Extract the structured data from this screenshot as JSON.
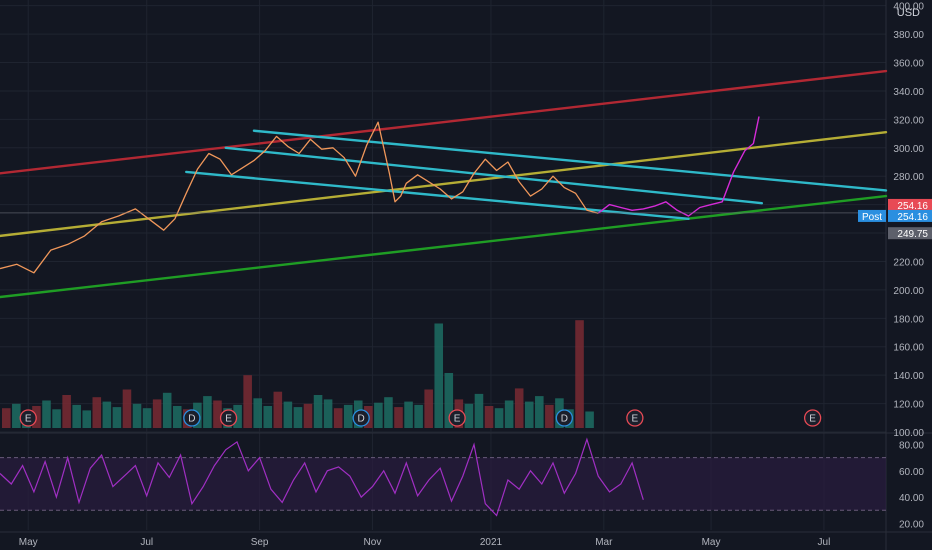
{
  "currency": "USD",
  "colors": {
    "background": "#131722",
    "grid": "#1f2430",
    "axis_text": "#b2b5be",
    "price": "#f0975a",
    "red_line": "#b22833",
    "yellow_line": "#b5ad35",
    "green_line": "#1f9d24",
    "channel": "#2fb9c9",
    "projection": "#d52bd8",
    "rsi": "#a02fc3",
    "rsi_band": "#2a1d3f",
    "volume_up": "#1d6d63",
    "volume_down": "#7a2a33",
    "label_red": "#e84a55",
    "label_blue": "#2a8fe0",
    "label_gray": "#5d606b"
  },
  "chart_data": [
    {
      "type": "line",
      "title": "",
      "x_ticks": [
        "May",
        "Jul",
        "Sep",
        "Nov",
        "2021",
        "Mar",
        "May",
        "Jul"
      ],
      "y_ticks": [
        100,
        120,
        140,
        160,
        180,
        200,
        220,
        240,
        260,
        280,
        300,
        320,
        340,
        360,
        380,
        400
      ],
      "y_tick_labels": [
        "100.00",
        "120.00",
        "140.00",
        "160.00",
        "180.00",
        "200.00",
        "220.00",
        "240.00",
        "260.00",
        "280.00",
        "300.00",
        "320.00",
        "340.00",
        "360.00",
        "380.00",
        "400.00"
      ],
      "ylim": [
        100,
        404
      ],
      "grid": true,
      "x_domain_months": [
        0,
        15.7
      ],
      "series": [
        {
          "role": "price",
          "x_month": [
            0,
            0.3,
            0.6,
            0.9,
            1.2,
            1.5,
            1.8,
            2.1,
            2.4,
            2.7,
            2.9,
            3.1,
            3.3,
            3.5,
            3.7,
            3.9,
            4.1,
            4.3,
            4.5,
            4.7,
            4.9,
            5.1,
            5.3,
            5.5,
            5.7,
            5.9,
            6.1,
            6.3,
            6.5,
            6.7,
            6.9,
            7.0,
            7.1,
            7.2,
            7.4,
            7.6,
            7.8,
            8.0,
            8.2,
            8.4,
            8.6,
            8.8,
            9.0,
            9.2,
            9.4,
            9.6,
            9.8,
            10.0,
            10.2,
            10.3,
            10.4,
            10.6
          ],
          "y": [
            215,
            218,
            212,
            228,
            232,
            238,
            248,
            252,
            257,
            248,
            242,
            250,
            268,
            285,
            296,
            292,
            281,
            286,
            291,
            298,
            308,
            301,
            296,
            306,
            299,
            300,
            293,
            280,
            302,
            318,
            282,
            262,
            266,
            275,
            281,
            276,
            271,
            264,
            269,
            282,
            292,
            284,
            290,
            276,
            266,
            271,
            280,
            272,
            268,
            262,
            256,
            254
          ]
        },
        {
          "role": "projection",
          "x_month": [
            10.6,
            10.8,
            11.0,
            11.2,
            11.4,
            11.6,
            11.8,
            12.0,
            12.2,
            12.4,
            12.6,
            12.8,
            13.0,
            13.2,
            13.35,
            13.45
          ],
          "y": [
            254,
            260,
            258,
            256,
            257,
            259,
            262,
            256,
            252,
            258,
            260,
            262,
            283,
            298,
            303,
            322
          ]
        }
      ],
      "trendlines": [
        {
          "role": "resistance-red",
          "x_month": [
            0,
            15.7
          ],
          "y": [
            282,
            354
          ]
        },
        {
          "role": "support-yellow",
          "x_month": [
            0,
            15.7
          ],
          "y": [
            238,
            311
          ]
        },
        {
          "role": "support-green",
          "x_month": [
            0,
            15.7
          ],
          "y": [
            195,
            266
          ]
        },
        {
          "role": "channel-upper",
          "x_month": [
            4.5,
            15.7
          ],
          "y": [
            312,
            270
          ]
        },
        {
          "role": "channel-middle",
          "x_month": [
            4.0,
            13.5
          ],
          "y": [
            300,
            261
          ]
        },
        {
          "role": "channel-lower",
          "x_month": [
            3.3,
            12.2
          ],
          "y": [
            283,
            250
          ]
        }
      ],
      "price_labels": [
        {
          "text": "254.16",
          "value": 254.16,
          "style": "red"
        },
        {
          "text": "254.16",
          "value": 254.16,
          "style": "blue",
          "prefix": "Post"
        },
        {
          "text": "249.75",
          "value": 249.75,
          "style": "gray"
        }
      ],
      "volume_relative": [
        0.18,
        0.22,
        0.15,
        0.2,
        0.25,
        0.17,
        0.3,
        0.21,
        0.16,
        0.28,
        0.24,
        0.19,
        0.35,
        0.22,
        0.18,
        0.26,
        0.32,
        0.2,
        0.17,
        0.23,
        0.29,
        0.25,
        0.18,
        0.21,
        0.48,
        0.27,
        0.2,
        0.33,
        0.24,
        0.19,
        0.22,
        0.3,
        0.26,
        0.18,
        0.21,
        0.25,
        0.2,
        0.23,
        0.28,
        0.19,
        0.24,
        0.21,
        0.35,
        0.95,
        0.5,
        0.26,
        0.22,
        0.31,
        0.2,
        0.18,
        0.25,
        0.36,
        0.24,
        0.29,
        0.21,
        0.27,
        0.17,
        0.98,
        0.15
      ],
      "event_markers": [
        {
          "label": "E",
          "x_month": 0.5,
          "kind": "earnings"
        },
        {
          "label": "D",
          "x_month": 3.4,
          "kind": "dividend"
        },
        {
          "label": "E",
          "x_month": 4.05,
          "kind": "earnings"
        },
        {
          "label": "D",
          "x_month": 6.4,
          "kind": "dividend"
        },
        {
          "label": "E",
          "x_month": 8.1,
          "kind": "earnings"
        },
        {
          "label": "D",
          "x_month": 10.0,
          "kind": "dividend"
        },
        {
          "label": "E",
          "x_month": 11.25,
          "kind": "earnings"
        },
        {
          "label": "E",
          "x_month": 14.4,
          "kind": "earnings"
        }
      ]
    },
    {
      "type": "line",
      "title": "",
      "x_ticks": [
        "May",
        "Jul",
        "Sep",
        "Nov",
        "2021",
        "Mar",
        "May",
        "Jul"
      ],
      "y_ticks": [
        20,
        40,
        60,
        80
      ],
      "y_tick_labels": [
        "20.00",
        "40.00",
        "60.00",
        "80.00"
      ],
      "ylim": [
        15,
        88
      ],
      "band": [
        30,
        70
      ],
      "series": [
        {
          "role": "rsi",
          "x_month": [
            0,
            0.2,
            0.4,
            0.6,
            0.8,
            1.0,
            1.2,
            1.4,
            1.6,
            1.8,
            2.0,
            2.2,
            2.4,
            2.6,
            2.8,
            3.0,
            3.2,
            3.4,
            3.6,
            3.8,
            4.0,
            4.2,
            4.4,
            4.6,
            4.8,
            5.0,
            5.2,
            5.4,
            5.6,
            5.8,
            6.0,
            6.2,
            6.4,
            6.6,
            6.8,
            7.0,
            7.2,
            7.4,
            7.6,
            7.8,
            8.0,
            8.2,
            8.4,
            8.6,
            8.8,
            9.0,
            9.2,
            9.4,
            9.6,
            9.8,
            10.0,
            10.2,
            10.4,
            10.6,
            10.8,
            11.0,
            11.2,
            11.4
          ],
          "y": [
            58,
            50,
            64,
            44,
            67,
            40,
            70,
            36,
            62,
            72,
            48,
            56,
            64,
            41,
            66,
            55,
            72,
            35,
            48,
            64,
            76,
            82,
            60,
            70,
            46,
            36,
            53,
            66,
            44,
            60,
            63,
            56,
            40,
            48,
            60,
            43,
            66,
            41,
            53,
            62,
            37,
            56,
            80,
            35,
            26,
            53,
            46,
            60,
            50,
            66,
            43,
            58,
            84,
            56,
            44,
            50,
            66,
            38
          ]
        }
      ]
    }
  ]
}
